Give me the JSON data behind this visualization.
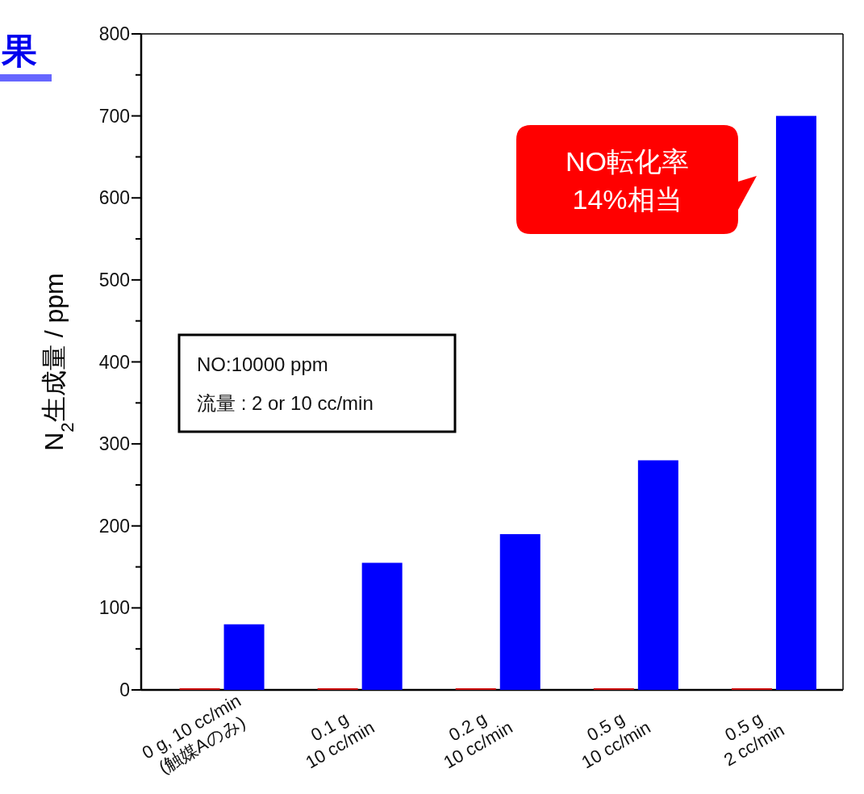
{
  "chart_data": {
    "type": "bar",
    "title": "果",
    "ylabel": "N$_{2}$生成量 / ppm",
    "categories": [
      "0 g, 10 cc/min\n(触媒Aのみ)",
      "0.1 g\n10 cc/min",
      "0.2 g\n10 cc/min",
      "0.5 g\n10 cc/min",
      "0.5 g\n2 cc/min"
    ],
    "series": [
      {
        "color": "#cc0000",
        "values": [
          2,
          2,
          2,
          2,
          2
        ]
      },
      {
        "color": "#0000ff",
        "values": [
          80,
          155,
          190,
          280,
          700
        ]
      }
    ],
    "ylim": [
      0,
      800
    ],
    "yticks": [
      0,
      100,
      200,
      300,
      400,
      500,
      600,
      700,
      800
    ],
    "annotations": [
      "NO転化率\n14%相当",
      "NO:10000 ppm\n流量 : 2 or 10 cc/min"
    ]
  }
}
